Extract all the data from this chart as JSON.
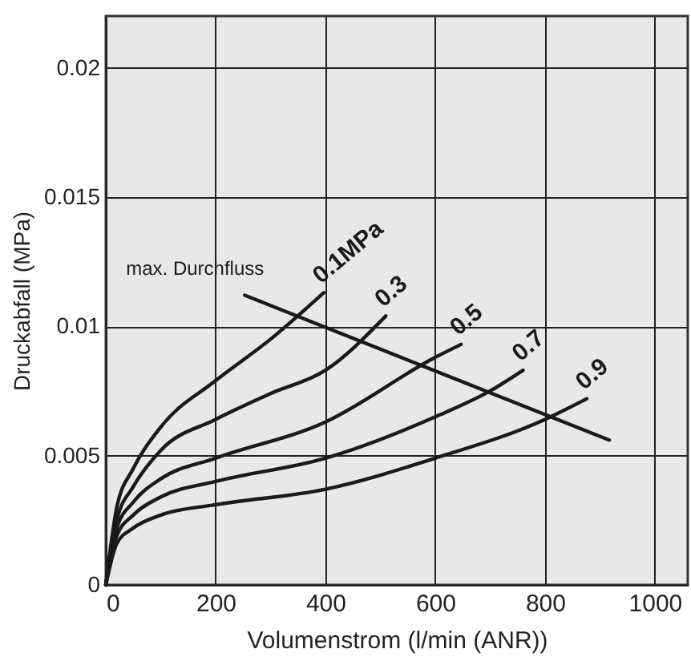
{
  "chart_data": {
    "type": "line",
    "xlabel": "Volumenstrom (l/min (ANR))",
    "ylabel": "Druckabfall (MPa)",
    "xlim": [
      0,
      1060
    ],
    "ylim": [
      0,
      0.022
    ],
    "xticks": [
      0,
      200,
      400,
      600,
      800,
      1000
    ],
    "yticks": [
      0,
      0.005,
      0.01,
      0.015,
      0.02
    ],
    "grid": true,
    "legend": false,
    "marker": "none",
    "line_style": "solid",
    "series": [
      {
        "name": "0.1MPa",
        "color": "#1a1a1a",
        "x": [
          0,
          20,
          50,
          100,
          200,
          300,
          397
        ],
        "values": [
          0,
          0.003,
          0.0045,
          0.0061,
          0.0079,
          0.0095,
          0.0113
        ]
      },
      {
        "name": "0.3",
        "color": "#1a1a1a",
        "x": [
          0,
          20,
          50,
          100,
          200,
          300,
          400,
          510
        ],
        "values": [
          0,
          0.0025,
          0.0038,
          0.0052,
          0.0064,
          0.0074,
          0.0083,
          0.0104
        ]
      },
      {
        "name": "0.5",
        "color": "#1a1a1a",
        "x": [
          0,
          20,
          50,
          100,
          200,
          400,
          600,
          647
        ],
        "values": [
          0,
          0.0022,
          0.0032,
          0.0041,
          0.0049,
          0.0063,
          0.0088,
          0.0093
        ]
      },
      {
        "name": "0.7",
        "color": "#1a1a1a",
        "x": [
          0,
          20,
          50,
          100,
          200,
          400,
          600,
          700,
          760
        ],
        "values": [
          0,
          0.0019,
          0.0027,
          0.0034,
          0.004,
          0.0049,
          0.0065,
          0.0075,
          0.0083
        ]
      },
      {
        "name": "0.9",
        "color": "#1a1a1a",
        "x": [
          0,
          20,
          50,
          100,
          200,
          400,
          600,
          800,
          876
        ],
        "values": [
          0,
          0.0016,
          0.0022,
          0.0027,
          0.0031,
          0.0037,
          0.0049,
          0.0064,
          0.0072
        ]
      },
      {
        "name": "max. Durchfluss",
        "color": "#1a1a1a",
        "x": [
          253,
          917
        ],
        "values": [
          0.0112,
          0.0056
        ]
      }
    ]
  }
}
